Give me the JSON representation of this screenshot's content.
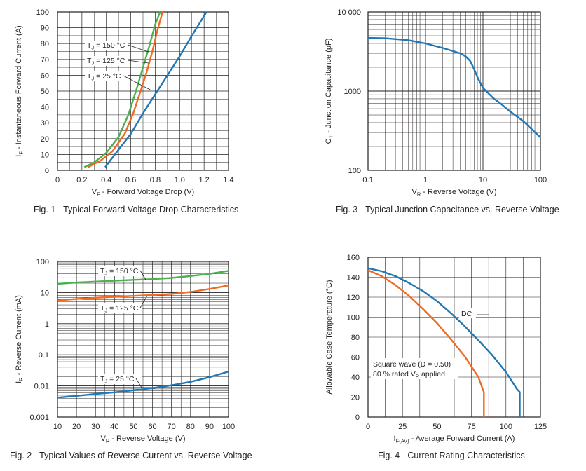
{
  "chart_data": [
    {
      "id": "fig1",
      "type": "line",
      "caption": "Fig. 1 - Typical Forward Voltage Drop Characteristics",
      "xlabel": {
        "main": "V",
        "sub": "F",
        "rest": " - Forward Voltage Drop (V)"
      },
      "ylabel": {
        "main": "I",
        "sub": "F",
        "rest": " - Instantaneous Forward Current (A)"
      },
      "xlim": [
        0,
        1.4
      ],
      "ylim": [
        0,
        100
      ],
      "x_ticks": [
        "0",
        "0.2",
        "0.4",
        "0.6",
        "0.8",
        "1.0",
        "1.2",
        "1.4"
      ],
      "y_ticks": [
        "0",
        "10",
        "20",
        "30",
        "40",
        "50",
        "60",
        "70",
        "80",
        "90",
        "100"
      ],
      "series": [
        {
          "name": "150",
          "color": "#4caf50",
          "x": [
            0.22,
            0.3,
            0.4,
            0.5,
            0.58,
            0.65,
            0.7,
            0.75,
            0.8,
            0.84
          ],
          "y": [
            2,
            5,
            11,
            21,
            35,
            52,
            65,
            78,
            92,
            100
          ]
        },
        {
          "name": "125",
          "color": "#f06a23",
          "x": [
            0.25,
            0.35,
            0.45,
            0.55,
            0.62,
            0.68,
            0.73,
            0.78,
            0.82,
            0.86
          ],
          "y": [
            2,
            6,
            12,
            23,
            36,
            50,
            62,
            76,
            89,
            100
          ]
        },
        {
          "name": "25",
          "color": "#1f77b4",
          "x": [
            0.39,
            0.45,
            0.5,
            0.6,
            0.7,
            0.8,
            0.9,
            1.0,
            1.1,
            1.22
          ],
          "y": [
            2,
            8,
            13,
            23,
            36,
            48,
            60,
            72,
            85,
            100
          ]
        }
      ],
      "labels": [
        {
          "series": "150",
          "text": " = 150 °C",
          "main": "T",
          "sub": "J"
        },
        {
          "series": "125",
          "text": " = 125 °C",
          "main": "T",
          "sub": "J"
        },
        {
          "series": "25",
          "text": " = 25 °C",
          "main": "T",
          "sub": "J"
        }
      ]
    },
    {
      "id": "fig3",
      "type": "line",
      "scale": "log-log",
      "caption": "Fig. 3 - Typical Junction Capacitance vs. Reverse Voltage",
      "xlabel": {
        "main": "V",
        "sub": "R",
        "rest": " - Reverse Voltage (V)"
      },
      "ylabel": {
        "main": "C",
        "sub": "T",
        "rest": " - Junction Capacitance (pF)"
      },
      "xlim": [
        0.1,
        100
      ],
      "ylim": [
        100,
        10000
      ],
      "x_ticks": [
        "0.1",
        "1",
        "10",
        "100"
      ],
      "y_ticks": [
        "100",
        "1000",
        "10 000"
      ],
      "series": [
        {
          "name": "CT",
          "color": "#1f77b4",
          "x": [
            0.1,
            0.2,
            0.5,
            1,
            2,
            3,
            4,
            5,
            6,
            7,
            8,
            10,
            15,
            20,
            30,
            50,
            100
          ],
          "y": [
            4700,
            4650,
            4400,
            4000,
            3500,
            3200,
            3000,
            2750,
            2400,
            1900,
            1500,
            1100,
            820,
            700,
            550,
            420,
            260
          ]
        }
      ]
    },
    {
      "id": "fig2",
      "type": "line",
      "scale": "semilog-y",
      "caption": "Fig. 2 - Typical Values of Reverse Current vs. Reverse Voltage",
      "xlabel": {
        "main": "V",
        "sub": "R",
        "rest": " - Reverse Voltage (V)"
      },
      "ylabel": {
        "main": "I",
        "sub": "R",
        "rest": " - Reverse Current (mA)"
      },
      "xlim": [
        10,
        100
      ],
      "ylim": [
        0.001,
        100
      ],
      "x_ticks": [
        "10",
        "20",
        "30",
        "40",
        "50",
        "60",
        "70",
        "80",
        "90",
        "100"
      ],
      "y_ticks": [
        "0.001",
        "0.01",
        "0.1",
        "1",
        "10",
        "100"
      ],
      "series": [
        {
          "name": "150",
          "color": "#4caf50",
          "x": [
            10,
            20,
            30,
            40,
            50,
            60,
            70,
            80,
            90,
            100
          ],
          "y": [
            19,
            21,
            22.5,
            24,
            25.5,
            27,
            29.5,
            34,
            40,
            50
          ]
        },
        {
          "name": "125",
          "color": "#f06a23",
          "x": [
            10,
            20,
            30,
            40,
            50,
            60,
            70,
            80,
            90,
            100
          ],
          "y": [
            5.6,
            6.2,
            6.8,
            7.3,
            7.8,
            8.3,
            9,
            10.5,
            13,
            17
          ]
        },
        {
          "name": "25",
          "color": "#1f77b4",
          "x": [
            10,
            20,
            30,
            40,
            50,
            60,
            70,
            80,
            90,
            100
          ],
          "y": [
            0.0042,
            0.0048,
            0.0055,
            0.0062,
            0.0072,
            0.0085,
            0.0105,
            0.0135,
            0.019,
            0.029
          ]
        }
      ],
      "labels": [
        {
          "series": "150",
          "text": " = 150 °C",
          "main": "T",
          "sub": "J"
        },
        {
          "series": "125",
          "text": " = 125 °C",
          "main": "T",
          "sub": "J"
        },
        {
          "series": "25",
          "text": " = 25 °C",
          "main": "T",
          "sub": "J"
        }
      ]
    },
    {
      "id": "fig4",
      "type": "line",
      "caption": "Fig. 4 - Current Rating Characteristics",
      "xlabel": {
        "main": "I",
        "sub": "F(AV)",
        "rest": " - Average Forward Current (A)"
      },
      "ylabel": {
        "main": "Allowable Case Temperature (°C)",
        "sub": "",
        "rest": ""
      },
      "xlim": [
        0,
        125
      ],
      "ylim": [
        0,
        160
      ],
      "x_ticks": [
        "0",
        "25",
        "50",
        "75",
        "100",
        "125"
      ],
      "y_ticks": [
        "0",
        "20",
        "40",
        "60",
        "80",
        "100",
        "120",
        "140",
        "160"
      ],
      "series": [
        {
          "name": "DC",
          "color": "#1f77b4",
          "x": [
            0,
            10,
            20,
            30,
            40,
            50,
            60,
            70,
            80,
            90,
            100,
            108,
            110,
            110
          ],
          "y": [
            149,
            146,
            141,
            134,
            126,
            116,
            104,
            91,
            77,
            62,
            45,
            28,
            25,
            0
          ]
        },
        {
          "name": "Square",
          "color": "#f06a23",
          "x": [
            0,
            10,
            20,
            30,
            40,
            50,
            60,
            70,
            80,
            84,
            84
          ],
          "y": [
            147,
            141,
            132,
            121,
            108,
            94,
            78,
            61,
            40,
            25,
            0
          ]
        }
      ],
      "annotations": [
        {
          "text": "DC"
        },
        {
          "line1": "Square wave (D = 0.50)",
          "line2_pre": "80 % rated V",
          "line2_sub": "R",
          "line2_post": " applied"
        }
      ]
    }
  ]
}
